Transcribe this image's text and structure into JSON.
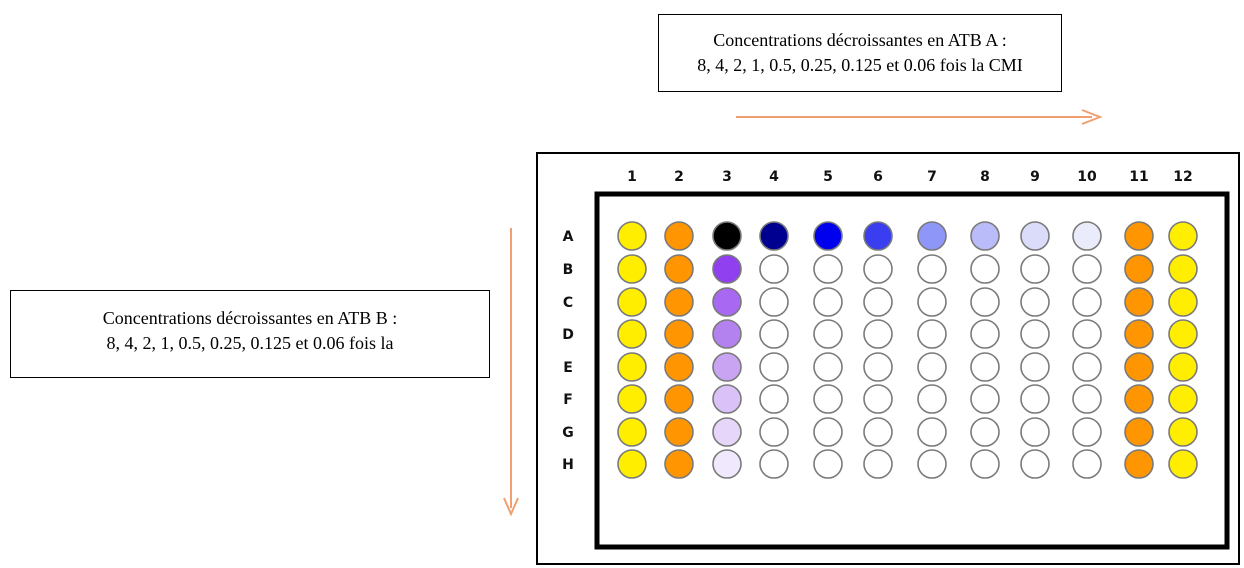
{
  "annotations": {
    "top_line1": "Concentrations décroissantes en ATB A :",
    "top_line2": "8, 4, 2, 1, 0.5, 0.25, 0.125 et 0.06 fois la CMI",
    "left_line1": "Concentrations décroissantes en ATB B :",
    "left_line2": "8, 4, 2, 1, 0.5, 0.25, 0.125 et 0.06 fois la"
  },
  "arrow_color": "#f0a070",
  "plate": {
    "columns": [
      "1",
      "2",
      "3",
      "4",
      "5",
      "6",
      "7",
      "8",
      "9",
      "10",
      "11",
      "12"
    ],
    "rows": [
      "A",
      "B",
      "C",
      "D",
      "E",
      "F",
      "G",
      "H"
    ],
    "wells": [
      [
        "#ffee00",
        "#ff9500",
        "#000000",
        "#000090",
        "#0000ee",
        "#3a3ef0",
        "#8e96f8",
        "#b9bcf8",
        "#dadcfa",
        "#ebecfb",
        "#ff9500",
        "#ffee00"
      ],
      [
        "#ffee00",
        "#ff9500",
        "#9040ee",
        "#ffffff",
        "#ffffff",
        "#ffffff",
        "#ffffff",
        "#ffffff",
        "#ffffff",
        "#ffffff",
        "#ff9500",
        "#ffee00"
      ],
      [
        "#ffee00",
        "#ff9500",
        "#a868f2",
        "#ffffff",
        "#ffffff",
        "#ffffff",
        "#ffffff",
        "#ffffff",
        "#ffffff",
        "#ffffff",
        "#ff9500",
        "#ffee00"
      ],
      [
        "#ffee00",
        "#ff9500",
        "#b482ee",
        "#ffffff",
        "#ffffff",
        "#ffffff",
        "#ffffff",
        "#ffffff",
        "#ffffff",
        "#ffffff",
        "#ff9500",
        "#ffee00"
      ],
      [
        "#ffee00",
        "#ff9500",
        "#c8a4f2",
        "#ffffff",
        "#ffffff",
        "#ffffff",
        "#ffffff",
        "#ffffff",
        "#ffffff",
        "#ffffff",
        "#ff9500",
        "#ffee00"
      ],
      [
        "#ffee00",
        "#ff9500",
        "#dac2f8",
        "#ffffff",
        "#ffffff",
        "#ffffff",
        "#ffffff",
        "#ffffff",
        "#ffffff",
        "#ffffff",
        "#ff9500",
        "#ffee00"
      ],
      [
        "#ffee00",
        "#ff9500",
        "#e6d6fa",
        "#ffffff",
        "#ffffff",
        "#ffffff",
        "#ffffff",
        "#ffffff",
        "#ffffff",
        "#ffffff",
        "#ff9500",
        "#ffee00"
      ],
      [
        "#ffee00",
        "#ff9500",
        "#f0e8fc",
        "#ffffff",
        "#ffffff",
        "#ffffff",
        "#ffffff",
        "#ffffff",
        "#ffffff",
        "#ffffff",
        "#ff9500",
        "#ffee00"
      ]
    ]
  }
}
